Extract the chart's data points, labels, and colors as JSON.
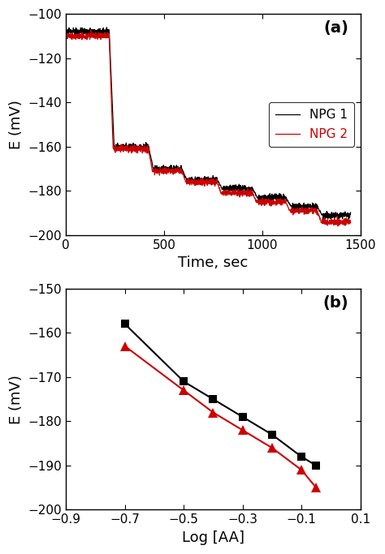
{
  "panel_a": {
    "title": "(a)",
    "xlabel": "Time, sec",
    "ylabel": "E (mV)",
    "xlim": [
      0,
      1500
    ],
    "ylim": [
      -200,
      -100
    ],
    "yticks": [
      -200,
      -180,
      -160,
      -140,
      -120,
      -100
    ],
    "xticks": [
      0,
      500,
      1000,
      1500
    ],
    "npg1_color": "#000000",
    "npg2_color": "#cc0000",
    "legend_labels": [
      "NPG 1",
      "NPG 2"
    ]
  },
  "panel_b": {
    "title": "(b)",
    "xlabel": "Log [AA]",
    "ylabel": "E (mV)",
    "xlim": [
      -0.9,
      0.1
    ],
    "ylim": [
      -200,
      -150
    ],
    "yticks": [
      -200,
      -190,
      -180,
      -170,
      -160,
      -150
    ],
    "xticks": [
      -0.9,
      -0.7,
      -0.5,
      -0.3,
      -0.1,
      0.1
    ],
    "npg1_x": [
      -0.7,
      -0.5,
      -0.4,
      -0.3,
      -0.2,
      -0.1,
      -0.05
    ],
    "npg1_y": [
      -158,
      -171,
      -175,
      -179,
      -183,
      -188,
      -190
    ],
    "npg2_x": [
      -0.7,
      -0.5,
      -0.4,
      -0.3,
      -0.2,
      -0.1,
      -0.05
    ],
    "npg2_y": [
      -163,
      -173,
      -178,
      -182,
      -186,
      -191,
      -195
    ],
    "npg1_color": "#000000",
    "npg2_color": "#cc0000"
  }
}
